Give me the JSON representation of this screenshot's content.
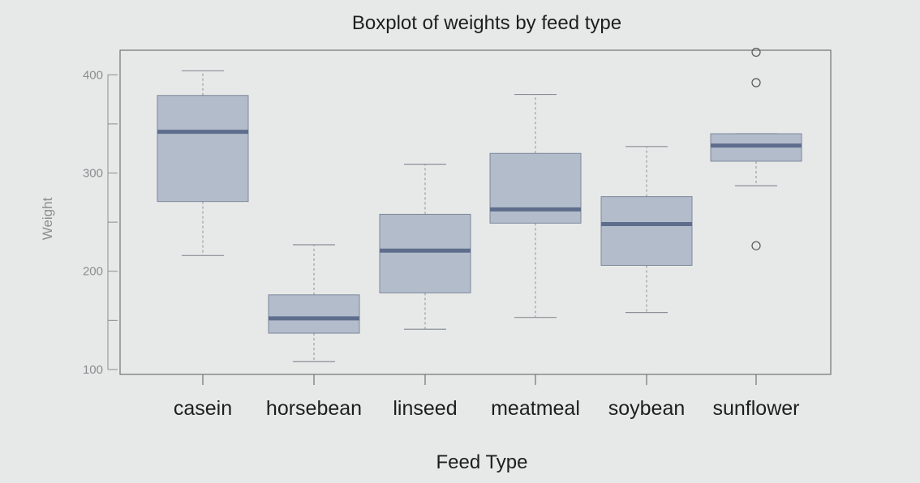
{
  "chart_data": {
    "type": "box",
    "title": "Boxplot of weights by feed type",
    "xlabel": "Feed Type",
    "ylabel": "Weight",
    "ylim": [
      95,
      425
    ],
    "yticks": [
      100,
      150,
      200,
      250,
      300,
      350,
      400
    ],
    "ytick_labels": [
      "100",
      "",
      "200",
      "",
      "300",
      "",
      "400"
    ],
    "grid": false,
    "colors": {
      "box_fill": "#b3bccb",
      "box_edge": "#7d889b",
      "median": "#5e6d8c",
      "whisker": "#8a8f98",
      "outlier": "#555555"
    },
    "categories": [
      "casein",
      "horsebean",
      "linseed",
      "meatmeal",
      "soybean",
      "sunflower"
    ],
    "boxes": [
      {
        "name": "casein",
        "whislo": 216,
        "q1": 271,
        "med": 342,
        "q3": 379,
        "whishi": 404,
        "fliers": []
      },
      {
        "name": "horsebean",
        "whislo": 108,
        "q1": 137,
        "med": 152,
        "q3": 176,
        "whishi": 227,
        "fliers": []
      },
      {
        "name": "linseed",
        "whislo": 141,
        "q1": 178,
        "med": 221,
        "q3": 258,
        "whishi": 309,
        "fliers": []
      },
      {
        "name": "meatmeal",
        "whislo": 153,
        "q1": 249,
        "med": 263,
        "q3": 320,
        "whishi": 380,
        "fliers": []
      },
      {
        "name": "soybean",
        "whislo": 158,
        "q1": 206,
        "med": 248,
        "q3": 276,
        "whishi": 327,
        "fliers": []
      },
      {
        "name": "sunflower",
        "whislo": 287,
        "q1": 312,
        "med": 328,
        "q3": 340,
        "whishi": 340,
        "fliers": [
          423,
          392,
          226
        ]
      }
    ]
  }
}
